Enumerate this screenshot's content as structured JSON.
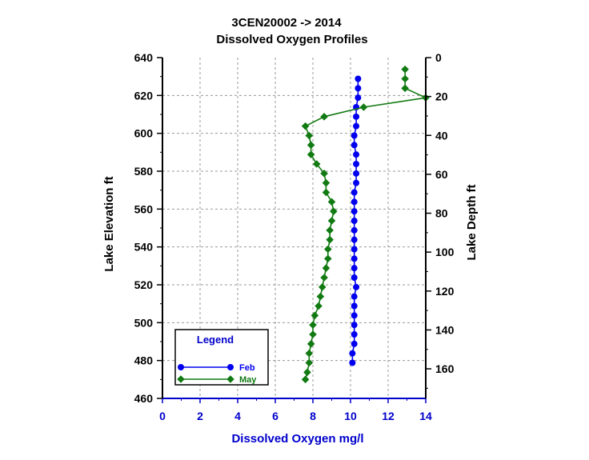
{
  "chart_data": {
    "type": "line",
    "title": "3CEN20002  ->  2014",
    "subtitle": "Dissolved Oxygen Profiles",
    "xlabel": "Dissolved  Oxygen  mg/l",
    "ylabel": "Lake  Elevation  ft",
    "y2label": "Lake  Depth  ft",
    "xlim": [
      0,
      14
    ],
    "ylim": [
      460,
      640
    ],
    "y2lim": [
      0,
      175.2
    ],
    "x_ticks": [
      "0",
      "2",
      "4",
      "6",
      "8",
      "10",
      "12",
      "14"
    ],
    "y_ticks": [
      "460",
      "480",
      "500",
      "520",
      "540",
      "560",
      "580",
      "600",
      "620",
      "640"
    ],
    "y2_ticks": [
      "0",
      "20",
      "40",
      "60",
      "80",
      "100",
      "120",
      "140",
      "160"
    ],
    "grid": true,
    "legend": {
      "title": "Legend",
      "position": "bottom-left"
    },
    "colors": {
      "axis_text": "#0000cc",
      "text": "#000000",
      "grid": "#999999"
    },
    "series": [
      {
        "name": "Feb",
        "color": "#0000ee",
        "marker": "circle",
        "points": [
          [
            10.4,
            628.8
          ],
          [
            10.4,
            623.8
          ],
          [
            10.4,
            618.8
          ],
          [
            10.3,
            613.8
          ],
          [
            10.3,
            608.8
          ],
          [
            10.3,
            603.8
          ],
          [
            10.2,
            598.8
          ],
          [
            10.2,
            593.8
          ],
          [
            10.3,
            588.8
          ],
          [
            10.3,
            583.8
          ],
          [
            10.3,
            578.8
          ],
          [
            10.3,
            573.8
          ],
          [
            10.2,
            568.8
          ],
          [
            10.2,
            563.8
          ],
          [
            10.2,
            558.8
          ],
          [
            10.2,
            553.8
          ],
          [
            10.2,
            548.8
          ],
          [
            10.2,
            543.8
          ],
          [
            10.2,
            538.8
          ],
          [
            10.2,
            533.8
          ],
          [
            10.2,
            528.8
          ],
          [
            10.2,
            523.8
          ],
          [
            10.3,
            518.8
          ],
          [
            10.2,
            513.8
          ],
          [
            10.2,
            508.8
          ],
          [
            10.2,
            503.8
          ],
          [
            10.2,
            498.8
          ],
          [
            10.2,
            493.8
          ],
          [
            10.2,
            488.8
          ],
          [
            10.1,
            483.8
          ],
          [
            10.1,
            478.8
          ]
        ]
      },
      {
        "name": "May",
        "color": "#127a12",
        "marker": "diamond",
        "points": [
          [
            12.9,
            633.8
          ],
          [
            12.9,
            628.8
          ],
          [
            12.9,
            623.8
          ],
          [
            14.0,
            618.8
          ],
          [
            10.7,
            613.8
          ],
          [
            8.6,
            608.8
          ],
          [
            7.6,
            603.8
          ],
          [
            7.8,
            598.8
          ],
          [
            7.9,
            593.8
          ],
          [
            7.9,
            588.8
          ],
          [
            8.2,
            583.8
          ],
          [
            8.6,
            578.8
          ],
          [
            8.7,
            573.8
          ],
          [
            8.7,
            568.8
          ],
          [
            9.0,
            563.8
          ],
          [
            9.1,
            558.8
          ],
          [
            9.0,
            553.8
          ],
          [
            8.9,
            548.8
          ],
          [
            8.9,
            543.8
          ],
          [
            8.8,
            538.8
          ],
          [
            8.8,
            533.8
          ],
          [
            8.7,
            528.8
          ],
          [
            8.6,
            523.8
          ],
          [
            8.5,
            518.8
          ],
          [
            8.4,
            513.8
          ],
          [
            8.3,
            508.8
          ],
          [
            8.1,
            503.8
          ],
          [
            8.0,
            498.8
          ],
          [
            8.0,
            493.8
          ],
          [
            7.9,
            488.8
          ],
          [
            7.8,
            483.8
          ],
          [
            7.8,
            478.8
          ],
          [
            7.7,
            473.8
          ],
          [
            7.6,
            470.0
          ]
        ]
      }
    ]
  }
}
